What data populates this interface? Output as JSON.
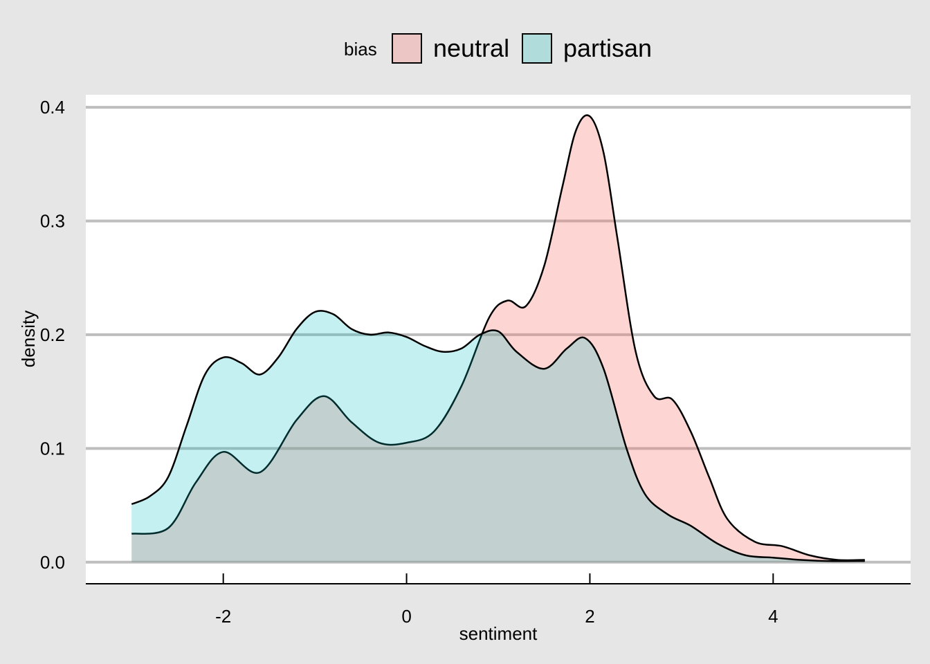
{
  "chart_data": {
    "type": "area",
    "title": "",
    "xlabel": "sentiment",
    "ylabel": "density",
    "xlim": [
      -3.5,
      5.5
    ],
    "ylim": [
      -0.019,
      0.411
    ],
    "x_ticks": [
      -2,
      0,
      2,
      4
    ],
    "x_tick_labels": [
      "-2",
      "0",
      "2",
      "4"
    ],
    "y_ticks": [
      0.0,
      0.1,
      0.2,
      0.3,
      0.4
    ],
    "y_tick_labels": [
      "0.0",
      "0.1",
      "0.2",
      "0.3",
      "0.4"
    ],
    "grid": "horizontal",
    "legend": {
      "title": "bias",
      "position": "top"
    },
    "series": [
      {
        "name": "neutral",
        "fill": "#f8766d",
        "fill_opacity": 0.3,
        "points": [
          [
            -3.0,
            0.025
          ],
          [
            -2.6,
            0.03
          ],
          [
            -2.3,
            0.07
          ],
          [
            -2.0,
            0.097
          ],
          [
            -1.6,
            0.079
          ],
          [
            -1.2,
            0.125
          ],
          [
            -0.9,
            0.146
          ],
          [
            -0.6,
            0.123
          ],
          [
            -0.3,
            0.105
          ],
          [
            0.0,
            0.105
          ],
          [
            0.3,
            0.115
          ],
          [
            0.6,
            0.155
          ],
          [
            0.9,
            0.215
          ],
          [
            1.1,
            0.23
          ],
          [
            1.3,
            0.225
          ],
          [
            1.5,
            0.26
          ],
          [
            1.7,
            0.33
          ],
          [
            1.85,
            0.38
          ],
          [
            2.0,
            0.392
          ],
          [
            2.15,
            0.36
          ],
          [
            2.3,
            0.285
          ],
          [
            2.5,
            0.185
          ],
          [
            2.7,
            0.146
          ],
          [
            2.9,
            0.143
          ],
          [
            3.1,
            0.115
          ],
          [
            3.3,
            0.075
          ],
          [
            3.5,
            0.038
          ],
          [
            3.8,
            0.018
          ],
          [
            4.1,
            0.014
          ],
          [
            4.4,
            0.006
          ],
          [
            4.7,
            0.002
          ],
          [
            5.0,
            0.002
          ]
        ]
      },
      {
        "name": "partisan",
        "fill": "#00bfc4",
        "fill_opacity": 0.23,
        "points": [
          [
            -3.0,
            0.051
          ],
          [
            -2.8,
            0.058
          ],
          [
            -2.6,
            0.075
          ],
          [
            -2.4,
            0.12
          ],
          [
            -2.2,
            0.165
          ],
          [
            -2.0,
            0.18
          ],
          [
            -1.8,
            0.175
          ],
          [
            -1.6,
            0.165
          ],
          [
            -1.4,
            0.18
          ],
          [
            -1.2,
            0.205
          ],
          [
            -1.0,
            0.22
          ],
          [
            -0.8,
            0.218
          ],
          [
            -0.6,
            0.205
          ],
          [
            -0.4,
            0.2
          ],
          [
            -0.2,
            0.202
          ],
          [
            0.0,
            0.198
          ],
          [
            0.2,
            0.19
          ],
          [
            0.4,
            0.185
          ],
          [
            0.6,
            0.188
          ],
          [
            0.8,
            0.2
          ],
          [
            1.0,
            0.203
          ],
          [
            1.2,
            0.185
          ],
          [
            1.5,
            0.17
          ],
          [
            1.75,
            0.188
          ],
          [
            1.95,
            0.197
          ],
          [
            2.15,
            0.17
          ],
          [
            2.4,
            0.1
          ],
          [
            2.6,
            0.06
          ],
          [
            2.85,
            0.042
          ],
          [
            3.1,
            0.032
          ],
          [
            3.4,
            0.016
          ],
          [
            3.7,
            0.006
          ],
          [
            4.0,
            0.004
          ],
          [
            4.3,
            0.002
          ],
          [
            4.6,
            0.001
          ],
          [
            5.0,
            0.001
          ]
        ]
      }
    ]
  }
}
